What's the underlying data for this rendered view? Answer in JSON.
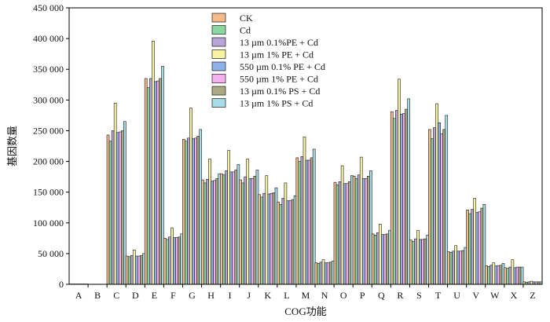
{
  "chart_data": {
    "type": "bar",
    "xlabel": "COG功能",
    "ylabel": "基因数量",
    "ylim": [
      0,
      450000
    ],
    "yticks": [
      0,
      50000,
      100000,
      150000,
      200000,
      250000,
      300000,
      350000,
      400000,
      450000
    ],
    "ytick_labels": [
      "0",
      "50 000",
      "100 000",
      "150 000",
      "200 000",
      "250 000",
      "300 000",
      "350 000",
      "400 000",
      "450 000"
    ],
    "grid": false,
    "legend_position": "top-center",
    "categories": [
      "A",
      "B",
      "C",
      "D",
      "E",
      "F",
      "G",
      "H",
      "I",
      "J",
      "K",
      "L",
      "M",
      "N",
      "O",
      "P",
      "Q",
      "R",
      "S",
      "T",
      "U",
      "V",
      "W",
      "X",
      "Z"
    ],
    "series": [
      {
        "name": "CK",
        "color": "#f6b98a",
        "values": [
          500,
          200,
          243000,
          46000,
          335000,
          75000,
          236000,
          170000,
          180000,
          170000,
          146000,
          134000,
          206000,
          35000,
          166000,
          176000,
          82000,
          281000,
          72000,
          252000,
          53000,
          121000,
          30000,
          27000,
          4000
        ]
      },
      {
        "name": "Cd",
        "color": "#88d8a0",
        "values": [
          500,
          200,
          233000,
          45000,
          320000,
          73000,
          233000,
          165000,
          178000,
          165000,
          142000,
          130000,
          200000,
          34000,
          162000,
          172000,
          80000,
          270000,
          70000,
          237000,
          52000,
          115000,
          29000,
          26000,
          3500
        ]
      },
      {
        "name": "13 µm 0.1%PE + Cd",
        "color": "#b8a4d8",
        "values": [
          500,
          200,
          250000,
          47000,
          335000,
          77000,
          238000,
          171000,
          185000,
          175000,
          148000,
          140000,
          208000,
          36000,
          167000,
          178000,
          84000,
          283000,
          74000,
          255000,
          54000,
          122000,
          31000,
          28000,
          4000
        ]
      },
      {
        "name": "13 µm 1% PE + Cd",
        "color": "#f7f3a3",
        "values": [
          500,
          200,
          295000,
          56000,
          396000,
          92000,
          287000,
          204000,
          218000,
          204000,
          177000,
          165000,
          240000,
          40000,
          193000,
          207000,
          98000,
          334000,
          88000,
          294000,
          63000,
          140000,
          35000,
          40000,
          5000
        ]
      },
      {
        "name": "550 µm 0.1% PE + Cd",
        "color": "#8fb0e8",
        "values": [
          500,
          200,
          247000,
          46000,
          330000,
          76000,
          237000,
          168000,
          183000,
          172000,
          147000,
          136000,
          202000,
          35000,
          164000,
          172000,
          81000,
          277000,
          73000,
          263000,
          54000,
          117000,
          30000,
          27000,
          4000
        ]
      },
      {
        "name": "550 µm 1% PE + Cd",
        "color": "#f7b0ef",
        "values": [
          500,
          200,
          248000,
          46000,
          331000,
          76000,
          238000,
          169000,
          183000,
          172000,
          148000,
          136000,
          202000,
          35000,
          164000,
          172000,
          81000,
          278000,
          73000,
          245000,
          54000,
          118000,
          30000,
          28000,
          4000
        ]
      },
      {
        "name": "13 µm 0.1% PS + Cd",
        "color": "#aaaa82",
        "values": [
          500,
          200,
          250000,
          47000,
          335000,
          77000,
          241000,
          172000,
          186000,
          176000,
          149000,
          138000,
          206000,
          36000,
          167000,
          176000,
          82000,
          285000,
          74000,
          252000,
          55000,
          124000,
          31000,
          28000,
          4000
        ]
      },
      {
        "name": "13 µm 1% PS + Cd",
        "color": "#a7dce8",
        "values": [
          500,
          200,
          265000,
          50000,
          355000,
          82000,
          252000,
          180000,
          195000,
          186000,
          157000,
          144000,
          220000,
          38000,
          177000,
          185000,
          88000,
          302000,
          80000,
          275000,
          60000,
          130000,
          34000,
          28000,
          4000
        ]
      }
    ]
  }
}
